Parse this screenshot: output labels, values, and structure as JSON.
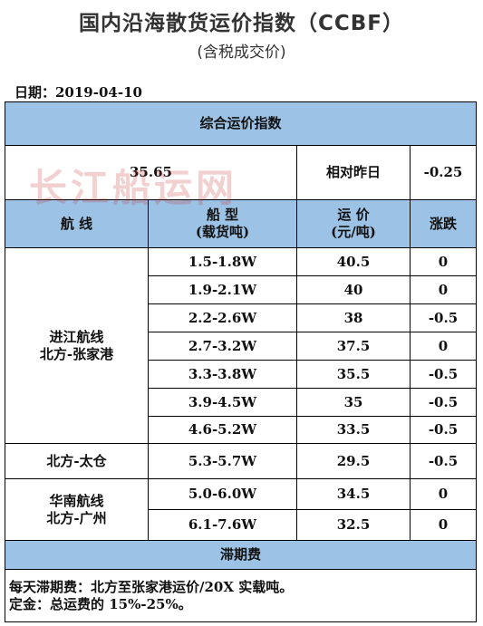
{
  "title": "国内沿海散货运价指数（CCBF）",
  "subtitle": "(含税成交价)",
  "date": "日期：2019-04-10",
  "watermark": "长江船运网",
  "composite": {
    "header": "综合运价指数",
    "value": "35.65",
    "relative_label": "相对昨日",
    "relative_value": "-0.25"
  },
  "columns": {
    "route": "航 线",
    "ship_type": [
      "船 型",
      "(载货吨)"
    ],
    "freight": [
      "运 价",
      "(元/吨)"
    ],
    "change": "涨跌"
  },
  "route_groups": [
    {
      "lines": [
        "进江航线",
        "北方-张家港"
      ]
    },
    {
      "lines": [
        "北方-太仓"
      ]
    },
    {
      "lines": [
        "华南航线",
        "北方-广州"
      ]
    }
  ],
  "rows": [
    {
      "ship_type": "1.5-1.8W",
      "freight": "40.5",
      "change": "0"
    },
    {
      "ship_type": "1.9-2.1W",
      "freight": "40",
      "change": "0"
    },
    {
      "ship_type": "2.2-2.6W",
      "freight": "38",
      "change": "-0.5"
    },
    {
      "ship_type": "2.7-3.2W",
      "freight": "37.5",
      "change": "0"
    },
    {
      "ship_type": "3.3-3.8W",
      "freight": "35.5",
      "change": "-0.5"
    },
    {
      "ship_type": "3.9-4.5W",
      "freight": "35",
      "change": "-0.5"
    },
    {
      "ship_type": "4.6-5.2W",
      "freight": "33.5",
      "change": "-0.5"
    },
    {
      "ship_type": "5.3-5.7W",
      "freight": "29.5",
      "change": "-0.5"
    },
    {
      "ship_type": "5.0-6.0W",
      "freight": "34.5",
      "change": "0"
    },
    {
      "ship_type": "6.1-7.6W",
      "freight": "32.5",
      "change": "0"
    }
  ],
  "demurrage": {
    "header": "滞期费",
    "line1": "每天滞期费：北方至张家港运价/20X 实载吨。",
    "line2": "定金：总运费的 15%-25%。"
  },
  "colors": {
    "header_fill": "#9cc2e5",
    "watermark": "#c82828"
  }
}
